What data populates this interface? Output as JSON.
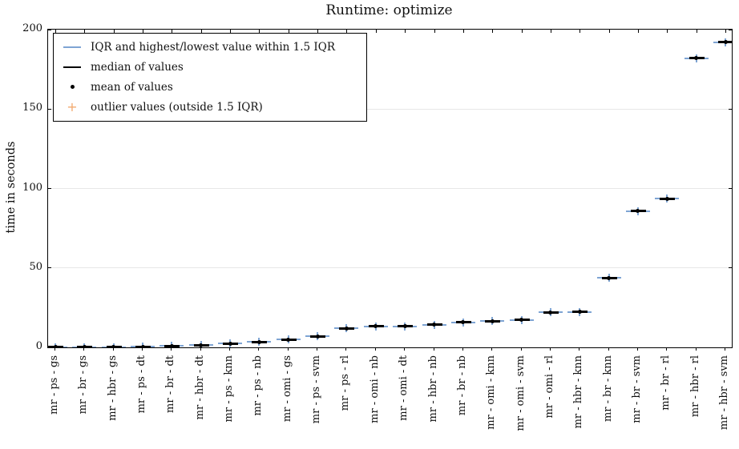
{
  "chart_data": {
    "type": "boxplot",
    "title": "Runtime: optimize",
    "ylabel": "time in seconds",
    "xlabel": "",
    "ylim": [
      0,
      200
    ],
    "yticks": [
      0,
      50,
      100,
      150,
      200
    ],
    "grid": true,
    "legend_position": "upper-left",
    "categories": [
      "mr - ps - gs",
      "mr - br - gs",
      "mr - hbr - gs",
      "mr - ps - dt",
      "mr - br - dt",
      "mr - hbr - dt",
      "mr - ps - knn",
      "mr - ps - nb",
      "mr - omi - gs",
      "mr - ps - svm",
      "mr - ps - rl",
      "mr - omi - nb",
      "mr - omi - dt",
      "mr - hbr - nb",
      "mr - br - nb",
      "mr - omi - knn",
      "mr - omi - svm",
      "mr - omi - rl",
      "mr - hbr - knn",
      "mr - br - knn",
      "mr - br - svm",
      "mr - br - rl",
      "mr - hbr - rl",
      "mr - hbr - svm"
    ],
    "values": [
      0.1,
      0.1,
      0.2,
      0.4,
      1.0,
      1.5,
      2.5,
      3.5,
      5.0,
      7.0,
      12.0,
      13.2,
      13.2,
      14.3,
      15.7,
      16.6,
      17.2,
      22.0,
      22.4,
      43.8,
      85.8,
      93.5,
      182.0,
      192.0
    ],
    "outliers": []
  },
  "legend": {
    "items": [
      {
        "label": "IQR and highest/lowest value within 1.5 IQR",
        "marker": "line-icon",
        "color_key": "iqr_blue"
      },
      {
        "label": "median of values",
        "marker": "line-icon",
        "color_key": "median_black"
      },
      {
        "label": "mean of values",
        "marker": "dot-icon",
        "color_key": "mean_black"
      },
      {
        "label": "outlier values (outside 1.5 IQR)",
        "marker": "plus-icon",
        "color_key": "outlier_orange"
      }
    ]
  },
  "colors": {
    "iqr_blue": "#7ea4d3",
    "median_black": "#000000",
    "mean_black": "#000000",
    "outlier_orange": "#f2aa70",
    "grid": "#e7e7e7",
    "spine": "#000000"
  }
}
